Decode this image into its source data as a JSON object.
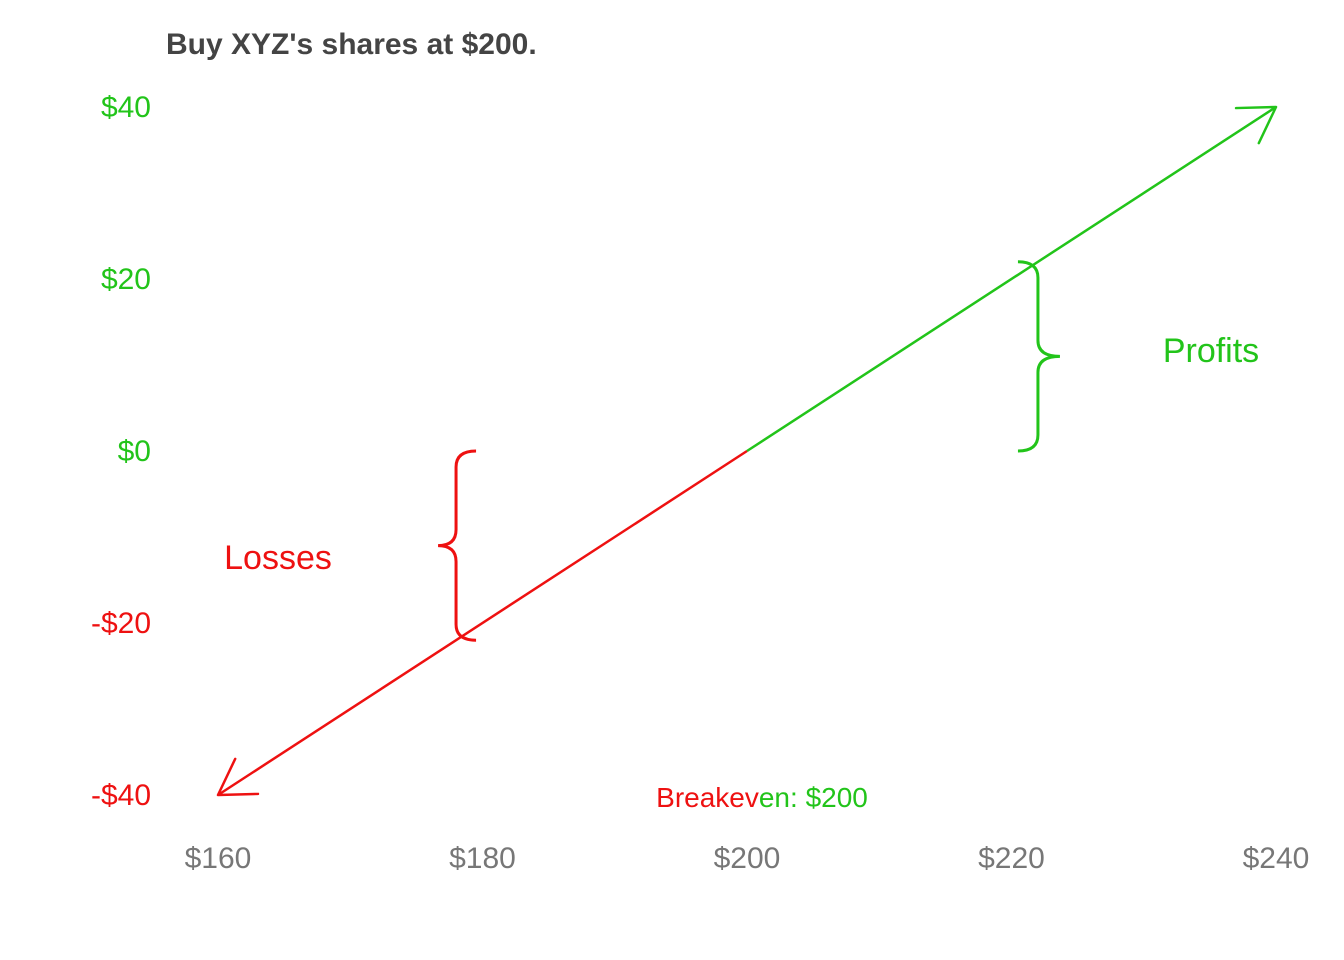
{
  "colors": {
    "profit": "#22c41a",
    "loss": "#ee1111",
    "xtick": "#777777",
    "title": "#444444"
  },
  "chart_data": {
    "type": "line",
    "title": "Buy XYZ's shares at $200.",
    "xlabel": "",
    "ylabel": "",
    "xlim": [
      160,
      240
    ],
    "ylim": [
      -40,
      40
    ],
    "grid": false,
    "x_ticks": [
      {
        "value": 160,
        "label": "$160"
      },
      {
        "value": 180,
        "label": "$180"
      },
      {
        "value": 200,
        "label": "$200"
      },
      {
        "value": 220,
        "label": "$220"
      },
      {
        "value": 240,
        "label": "$240"
      }
    ],
    "y_ticks": [
      {
        "value": 40,
        "label": "$40",
        "kind": "profit"
      },
      {
        "value": 20,
        "label": "$20",
        "kind": "profit"
      },
      {
        "value": 0,
        "label": "$0",
        "kind": "profit"
      },
      {
        "value": -20,
        "label": "-$20",
        "kind": "loss"
      },
      {
        "value": -40,
        "label": "-$40",
        "kind": "loss"
      }
    ],
    "series": [
      {
        "kind": "loss",
        "x": [
          200,
          160
        ],
        "y": [
          0,
          -40
        ]
      },
      {
        "kind": "profit",
        "x": [
          200,
          240
        ],
        "y": [
          0,
          40
        ]
      }
    ],
    "annotations": {
      "losses": {
        "label": "Losses",
        "brace_x": 178,
        "y_range": [
          -22,
          0
        ]
      },
      "profits": {
        "label": "Profits",
        "brace_x": 222,
        "y_range": [
          0,
          22
        ]
      },
      "breakeven": {
        "label_loss_part": "Breakev",
        "label_profit_part": "en: $200",
        "value": 200
      }
    }
  }
}
